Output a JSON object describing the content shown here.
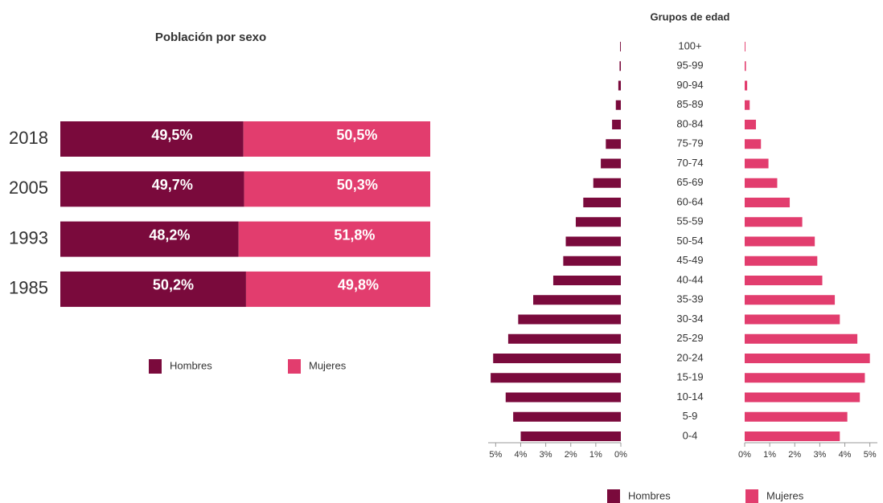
{
  "chart_data": [
    {
      "type": "bar",
      "title": "Población por sexo",
      "categories": [
        "2018",
        "2005",
        "1993",
        "1985"
      ],
      "series": [
        {
          "name": "Hombres",
          "color": "#7a0a3c",
          "values": [
            49.5,
            49.7,
            48.2,
            50.2
          ],
          "value_labels": [
            "49,5%",
            "49,7%",
            "48,2%",
            "50,2%"
          ]
        },
        {
          "name": "Mujeres",
          "color": "#e23d6e",
          "values": [
            50.5,
            50.3,
            51.8,
            49.8
          ],
          "value_labels": [
            "50,5%",
            "50,3%",
            "51,8%",
            "49,8%"
          ]
        }
      ]
    },
    {
      "type": "pyramid",
      "title": "Grupos de edad",
      "categories": [
        "100+",
        "95-99",
        "90-94",
        "85-89",
        "80-84",
        "75-79",
        "70-74",
        "65-69",
        "60-64",
        "55-59",
        "50-54",
        "45-49",
        "40-44",
        "35-39",
        "30-34",
        "25-29",
        "20-24",
        "15-19",
        "10-14",
        "5-9",
        "0-4"
      ],
      "series": [
        {
          "name": "Hombres",
          "color": "#7a0a3c",
          "values": [
            0.03,
            0.05,
            0.1,
            0.2,
            0.35,
            0.6,
            0.8,
            1.1,
            1.5,
            1.8,
            2.2,
            2.3,
            2.7,
            3.5,
            4.1,
            4.5,
            5.1,
            5.2,
            4.6,
            4.3,
            4.0
          ]
        },
        {
          "name": "Mujeres",
          "color": "#e23d6e",
          "values": [
            0.03,
            0.05,
            0.1,
            0.2,
            0.45,
            0.65,
            0.95,
            1.3,
            1.8,
            2.3,
            2.8,
            2.9,
            3.1,
            3.6,
            3.8,
            4.5,
            5.0,
            4.8,
            4.6,
            4.1,
            3.8
          ]
        }
      ],
      "xlim": [
        0,
        5.3
      ],
      "xticks": [
        {
          "value": 0,
          "label": "0%"
        },
        {
          "value": 1,
          "label": "1%"
        },
        {
          "value": 2,
          "label": "2%"
        },
        {
          "value": 3,
          "label": "3%"
        },
        {
          "value": 4,
          "label": "4%"
        },
        {
          "value": 5,
          "label": "5%"
        }
      ]
    }
  ]
}
